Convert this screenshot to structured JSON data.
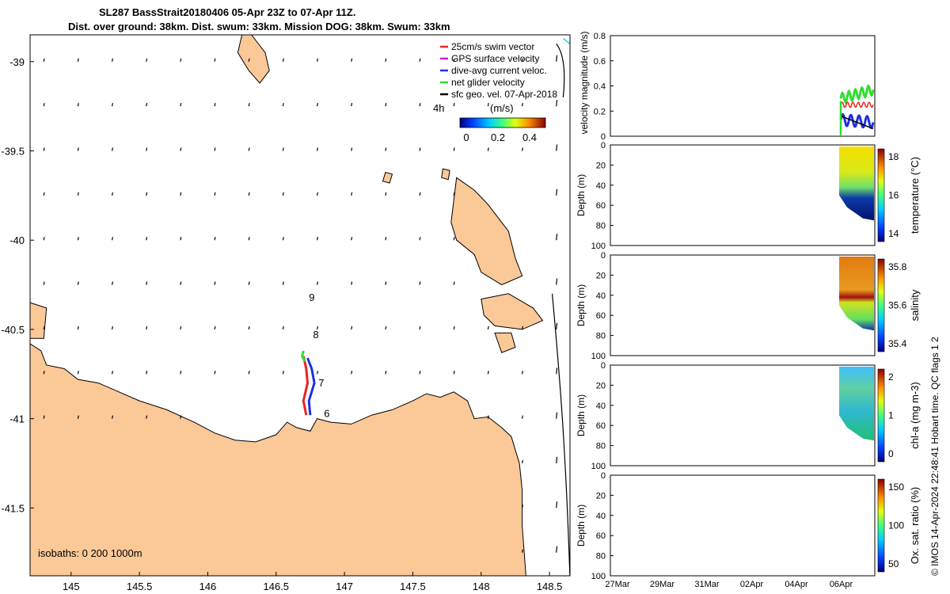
{
  "title": {
    "line1": "SL287 BassStrait20180406 05-Apr 23Z to 07-Apr 11Z.",
    "line2": "Dist. over ground: 38km. Dist. swum: 33km. Mission DOG: 38km. Swum: 33km"
  },
  "map": {
    "xticks": [
      "145",
      "145.5",
      "146",
      "146.5",
      "147",
      "147.5",
      "148",
      "148.5"
    ],
    "yticks": [
      "-39",
      "-39.5",
      "-40",
      "-40.5",
      "-41",
      "-41.5"
    ],
    "xlim": [
      144.7,
      148.65
    ],
    "ylim": [
      -41.88,
      -38.85
    ],
    "legend": [
      {
        "label": "25cm/s swim vector",
        "color": "#e8251e"
      },
      {
        "label": "GPS surface velocity",
        "color": "#d020d0"
      },
      {
        "label": "dive-avg current veloc.",
        "color": "#2030e0"
      },
      {
        "label": "net glider velocity",
        "color": "#30dd30"
      },
      {
        "label": "sfc geo. vel. 07-Apr-2018",
        "color": "#000000"
      }
    ],
    "time_label": "4h",
    "colorbar": {
      "label": "(m/s)",
      "ticks": [
        "0",
        "0.2",
        "0.4"
      ]
    },
    "day_labels": [
      {
        "text": "9",
        "lon": 146.74,
        "lat": -40.34
      },
      {
        "text": "8",
        "lon": 146.77,
        "lat": -40.55
      },
      {
        "text": "7",
        "lon": 146.81,
        "lat": -40.82
      },
      {
        "text": "6",
        "lon": 146.85,
        "lat": -40.99
      }
    ],
    "isobaths_label": "isobaths: 0   200  1000m",
    "colors": {
      "land": "#fbc898",
      "ocean": "#ffffff",
      "coast": "#000000"
    }
  },
  "panels": {
    "velocity": {
      "ylabel": "velocity magnitude (m/s)",
      "yticks": [
        "0",
        "0.2",
        "0.4",
        "0.6",
        "0.8"
      ]
    },
    "profiles": [
      {
        "id": "temperature",
        "ylabel": "Depth (m)",
        "yticks": [
          "0",
          "20",
          "40",
          "60",
          "80",
          "100"
        ],
        "cbar_label": "temperature (°C)",
        "cbar_ticks": [
          "14",
          "16",
          "18"
        ]
      },
      {
        "id": "salinity",
        "ylabel": "Depth (m)",
        "yticks": [
          "0",
          "20",
          "40",
          "60",
          "80",
          "100"
        ],
        "cbar_label": "salinity",
        "cbar_ticks": [
          "35.4",
          "35.6",
          "35.8"
        ]
      },
      {
        "id": "chla",
        "ylabel": "Depth (m)",
        "yticks": [
          "0",
          "20",
          "40",
          "60",
          "80",
          "100"
        ],
        "cbar_label": "chl-a (mg m-3)",
        "cbar_ticks": [
          "0",
          "1",
          "2"
        ]
      },
      {
        "id": "oxygen",
        "ylabel": "Depth (m)",
        "yticks": [
          "0",
          "20",
          "40",
          "60",
          "80",
          "100"
        ],
        "cbar_label": "Ox. sat. ratio (%)",
        "cbar_ticks": [
          "50",
          "100",
          "150"
        ]
      }
    ],
    "time_ticks": [
      "27Mar",
      "29Mar",
      "31Mar",
      "02Apr",
      "04Apr",
      "06Apr"
    ],
    "credit": "© IMOS 14-Apr-2024 22:48:41 Hobart time. QC flags 1  2"
  },
  "chart_data": [
    {
      "type": "scatter",
      "description_source": "map",
      "xlim": [
        144.7,
        148.65
      ],
      "ylim": [
        -41.88,
        -38.85
      ],
      "series": [
        {
          "name": "25cm/s swim vector",
          "x": [
            146.72,
            146.7,
            146.73,
            146.72,
            146.7
          ],
          "y": [
            -40.98,
            -40.9,
            -40.8,
            -40.72,
            -40.65
          ]
        },
        {
          "name": "dive-avg current veloc.",
          "x": [
            146.75,
            146.74,
            146.78,
            146.76,
            146.73
          ],
          "y": [
            -40.98,
            -40.9,
            -40.8,
            -40.72,
            -40.66
          ]
        },
        {
          "name": "net glider velocity",
          "x": [
            146.71,
            146.69,
            146.7
          ],
          "y": [
            -40.68,
            -40.65,
            -40.62
          ]
        }
      ]
    },
    {
      "type": "line",
      "description_source": "velocity magnitude panel",
      "ylim": [
        0,
        0.8
      ],
      "series": [
        {
          "name": "net glider velocity",
          "x": [
            "06Apr",
            "06Apr",
            "07Apr",
            "07Apr"
          ],
          "y": [
            0.25,
            0.35,
            0.33,
            0.38
          ]
        },
        {
          "name": "dive-avg current veloc.",
          "x": [
            "06Apr",
            "06Apr",
            "07Apr",
            "07Apr"
          ],
          "y": [
            0.12,
            0.18,
            0.08,
            0.15
          ]
        },
        {
          "name": "sfc geo. vel. 07-Apr-2018",
          "x": [
            "06Apr",
            "07Apr"
          ],
          "y": [
            0.16,
            0.06
          ]
        }
      ]
    }
  ]
}
